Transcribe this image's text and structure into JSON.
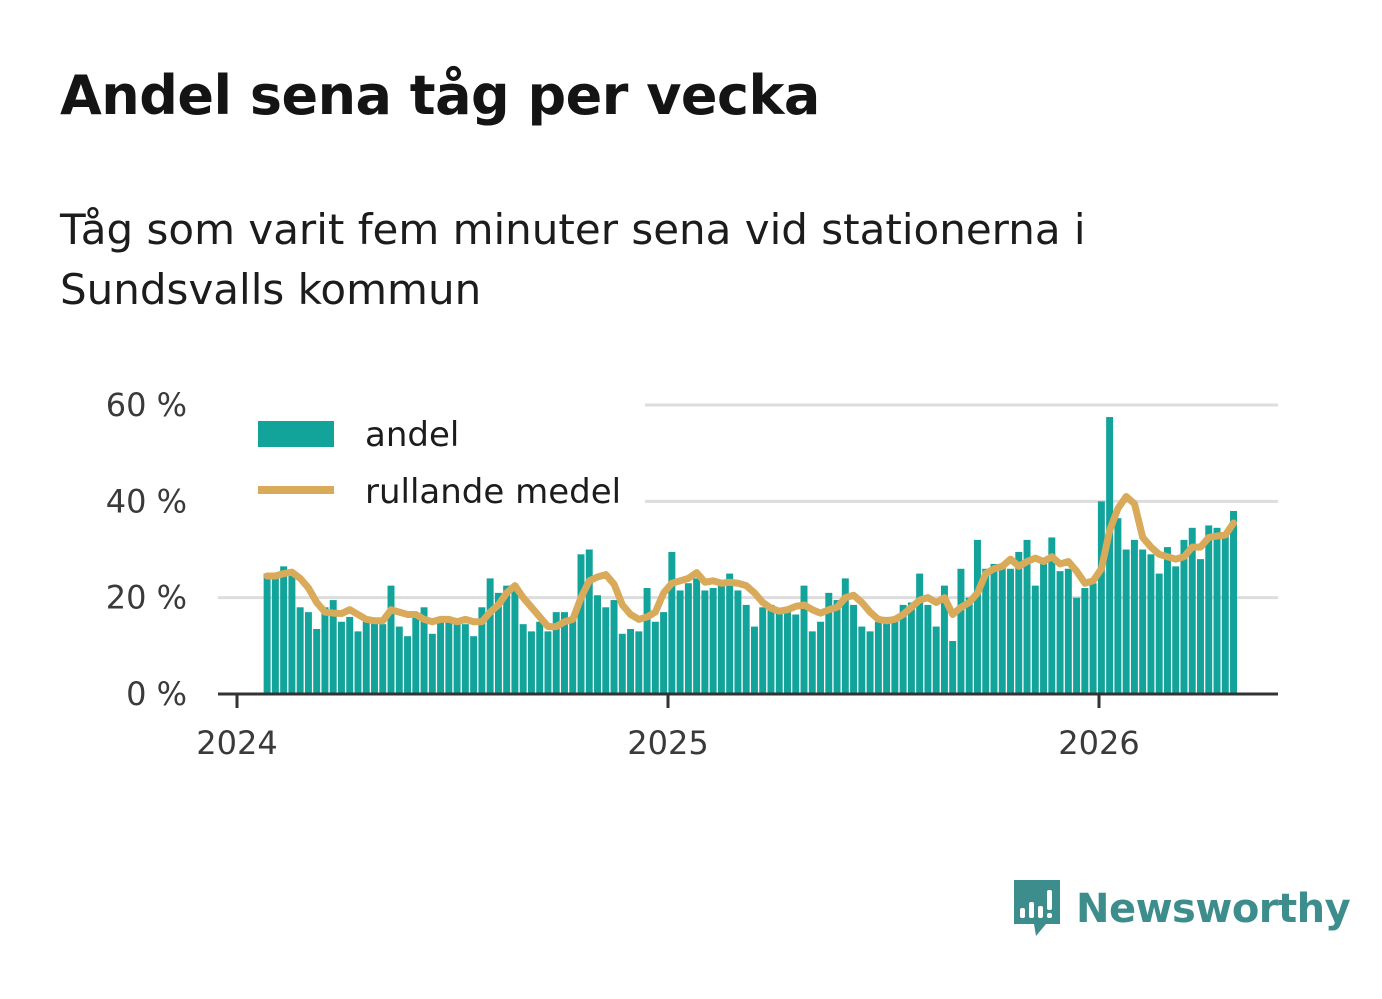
{
  "title": "Andel sena tåg per vecka",
  "subtitle": "Tåg som varit fem minuter sena vid stationerna i Sundsvalls kommun",
  "brand": {
    "name": "Newsworthy",
    "icon": "newsworthy-logo-icon"
  },
  "colors": {
    "bar": "#12a39a",
    "line": "#d9aa5a",
    "grid": "#dddddd",
    "axis": "#333333",
    "brand": "#3d8d8c"
  },
  "chart_data": {
    "type": "bar",
    "title": "Andel sena tåg per vecka",
    "xlabel": "",
    "ylabel": "",
    "ylim": [
      0,
      60
    ],
    "yticks": [
      0,
      20,
      40,
      60
    ],
    "ytick_labels": [
      "0 %",
      "20 %",
      "40 %",
      "60 %"
    ],
    "xticks": [
      2024,
      2025,
      2026
    ],
    "xtick_labels": [
      "2024",
      "2025",
      "2026"
    ],
    "x_start": 2024.07,
    "x_step_weeks": 1,
    "legend": {
      "position": "top-left",
      "entries": [
        "andel",
        "rullande medel"
      ]
    },
    "series": [
      {
        "name": "andel",
        "type": "bar",
        "values": [
          25,
          24,
          26.5,
          25,
          18,
          17,
          13.5,
          18,
          19.5,
          15,
          16,
          13,
          15,
          15,
          14.5,
          22.5,
          14,
          12,
          16,
          18,
          12.5,
          15,
          16,
          15.5,
          14.5,
          12,
          18,
          24,
          21,
          22.5,
          22,
          14.5,
          13,
          15,
          13,
          17,
          17,
          16,
          29,
          30,
          20.5,
          18,
          19.5,
          12.5,
          13.5,
          13,
          22,
          15,
          17,
          29.5,
          21.5,
          23,
          24,
          21.5,
          22,
          23,
          25,
          21.5,
          18.5,
          14,
          18,
          18.5,
          17,
          17.5,
          16.5,
          22.5,
          13,
          15,
          21,
          19.5,
          24,
          18.5,
          14,
          13,
          15,
          16,
          16,
          18.5,
          19,
          25,
          18.5,
          14,
          22.5,
          11,
          26,
          20,
          32,
          26,
          27,
          27,
          26,
          29.5,
          32,
          22.5,
          28,
          32.5,
          25.5,
          26,
          20,
          22,
          23,
          40,
          57.5,
          36.5,
          30,
          32,
          30,
          29,
          25,
          30.5,
          26.5,
          32,
          34.5,
          28,
          35,
          34.5,
          33.5,
          38
        ]
      },
      {
        "name": "rullande medel",
        "type": "line",
        "values": [
          24.5,
          24.5,
          25,
          25.3,
          24,
          22,
          19,
          17,
          16.8,
          16.7,
          17.5,
          16.5,
          15.5,
          15.2,
          15.2,
          17.5,
          17,
          16.5,
          16.5,
          15.5,
          15,
          15.5,
          15.5,
          15,
          15.5,
          15,
          15,
          17,
          18.5,
          21,
          22.5,
          20,
          18,
          16,
          14,
          14,
          15,
          15.5,
          20,
          23.5,
          24.3,
          24.8,
          22.8,
          18.5,
          16.5,
          15.5,
          16,
          17,
          21,
          23,
          23.5,
          24,
          25.2,
          23.2,
          23.5,
          23,
          23.2,
          23,
          22.5,
          21,
          19,
          17.8,
          17.2,
          17.5,
          18.2,
          18.5,
          17.5,
          16.8,
          17.5,
          18,
          20,
          20.5,
          19,
          17,
          15.5,
          15.2,
          15.5,
          16.5,
          18,
          19.5,
          20,
          19,
          20,
          16.5,
          18,
          19,
          21,
          25,
          26,
          26.5,
          28,
          26.5,
          27.5,
          28.2,
          27.5,
          28.5,
          27,
          27.5,
          25.5,
          23,
          23.5,
          26,
          34,
          38.5,
          41,
          39.5,
          32.5,
          30.5,
          29,
          28.5,
          28,
          28.5,
          30.5,
          30.5,
          32.5,
          32.8,
          33,
          35.5
        ]
      }
    ]
  }
}
